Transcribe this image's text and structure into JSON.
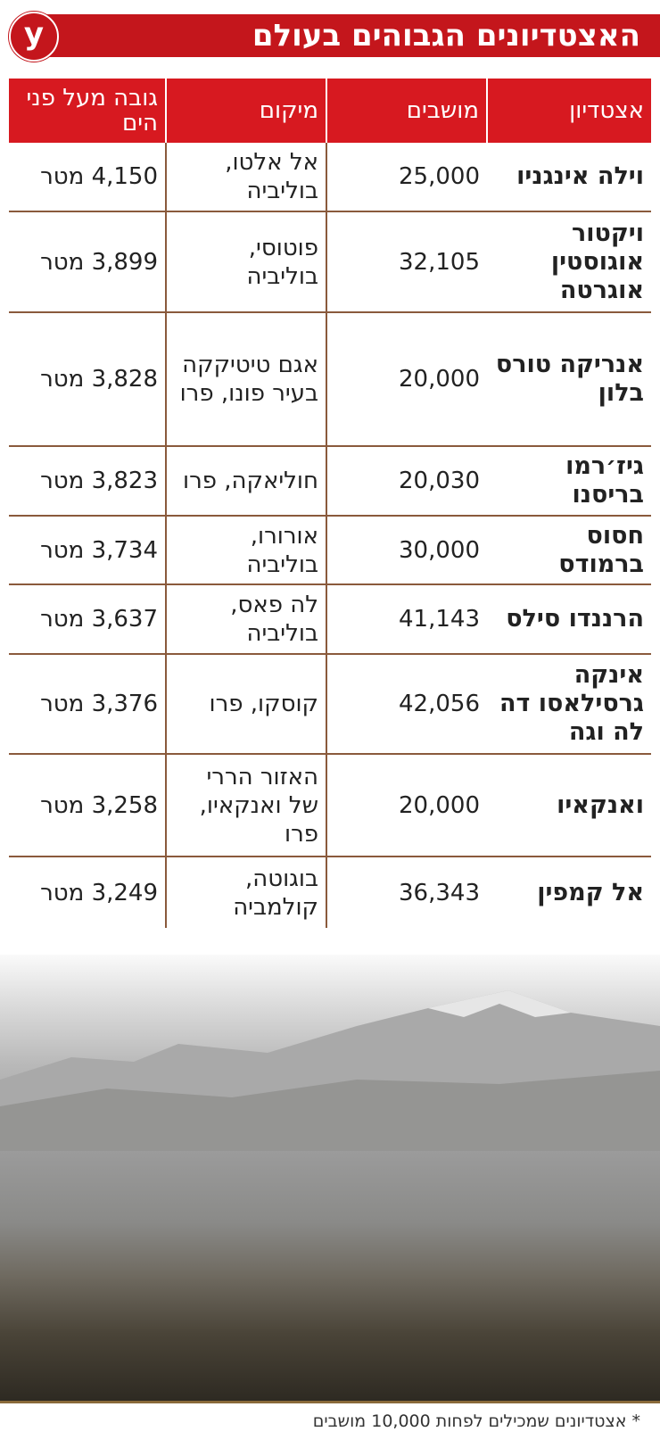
{
  "title": "האצטדיונים הגבוהים בעולם",
  "logo_letter": "y",
  "table": {
    "headers": [
      "אצטדיון",
      "מושבים",
      "מיקום",
      "גובה מעל פני הים"
    ],
    "rows": [
      {
        "name": "וילה אינגניו",
        "seats": "25,000",
        "location": "אל אלטו, בוליביה",
        "height": "4,150 מטר"
      },
      {
        "name": "ויקטור אוגוסטין אוגרטה",
        "seats": "32,105",
        "location": "פוטוסי, בוליביה",
        "height": "3,899 מטר"
      },
      {
        "name": "אנריקה טורס בלון",
        "seats": "20,000",
        "location": "אגם טיטיקקה בעיר פונו, פרו",
        "height": "3,828 מטר"
      },
      {
        "name": "גיז׳רמו בריסנו",
        "seats": "20,030",
        "location": "חוליאקה, פרו",
        "height": "3,823 מטר"
      },
      {
        "name": "חסוס ברמודס",
        "seats": "30,000",
        "location": "אורורו, בוליביה",
        "height": "3,734 מטר"
      },
      {
        "name": "הרננדו סילס",
        "seats": "41,143",
        "location": "לה פאס, בוליביה",
        "height": "3,637 מטר"
      },
      {
        "name": "אינקה גרסילאסו דה לה וגה",
        "seats": "42,056",
        "location": "קוסקו, פרו",
        "height": "3,376 מטר"
      },
      {
        "name": "ואנקאיו",
        "seats": "20,000",
        "location": "האזור הררי של ואנקאיו, פרו",
        "height": "3,258 מטר"
      },
      {
        "name": "אל קמפין",
        "seats": "36,343",
        "location": "בוגוטה, קולמביה",
        "height": "3,249 מטר"
      }
    ]
  },
  "footnote": "* אצטדיונים שמכילים לפחות 10,000 מושבים",
  "colors": {
    "accent": "#d71920",
    "title_bg": "#c4161c",
    "divider": "#8a5a3c"
  }
}
